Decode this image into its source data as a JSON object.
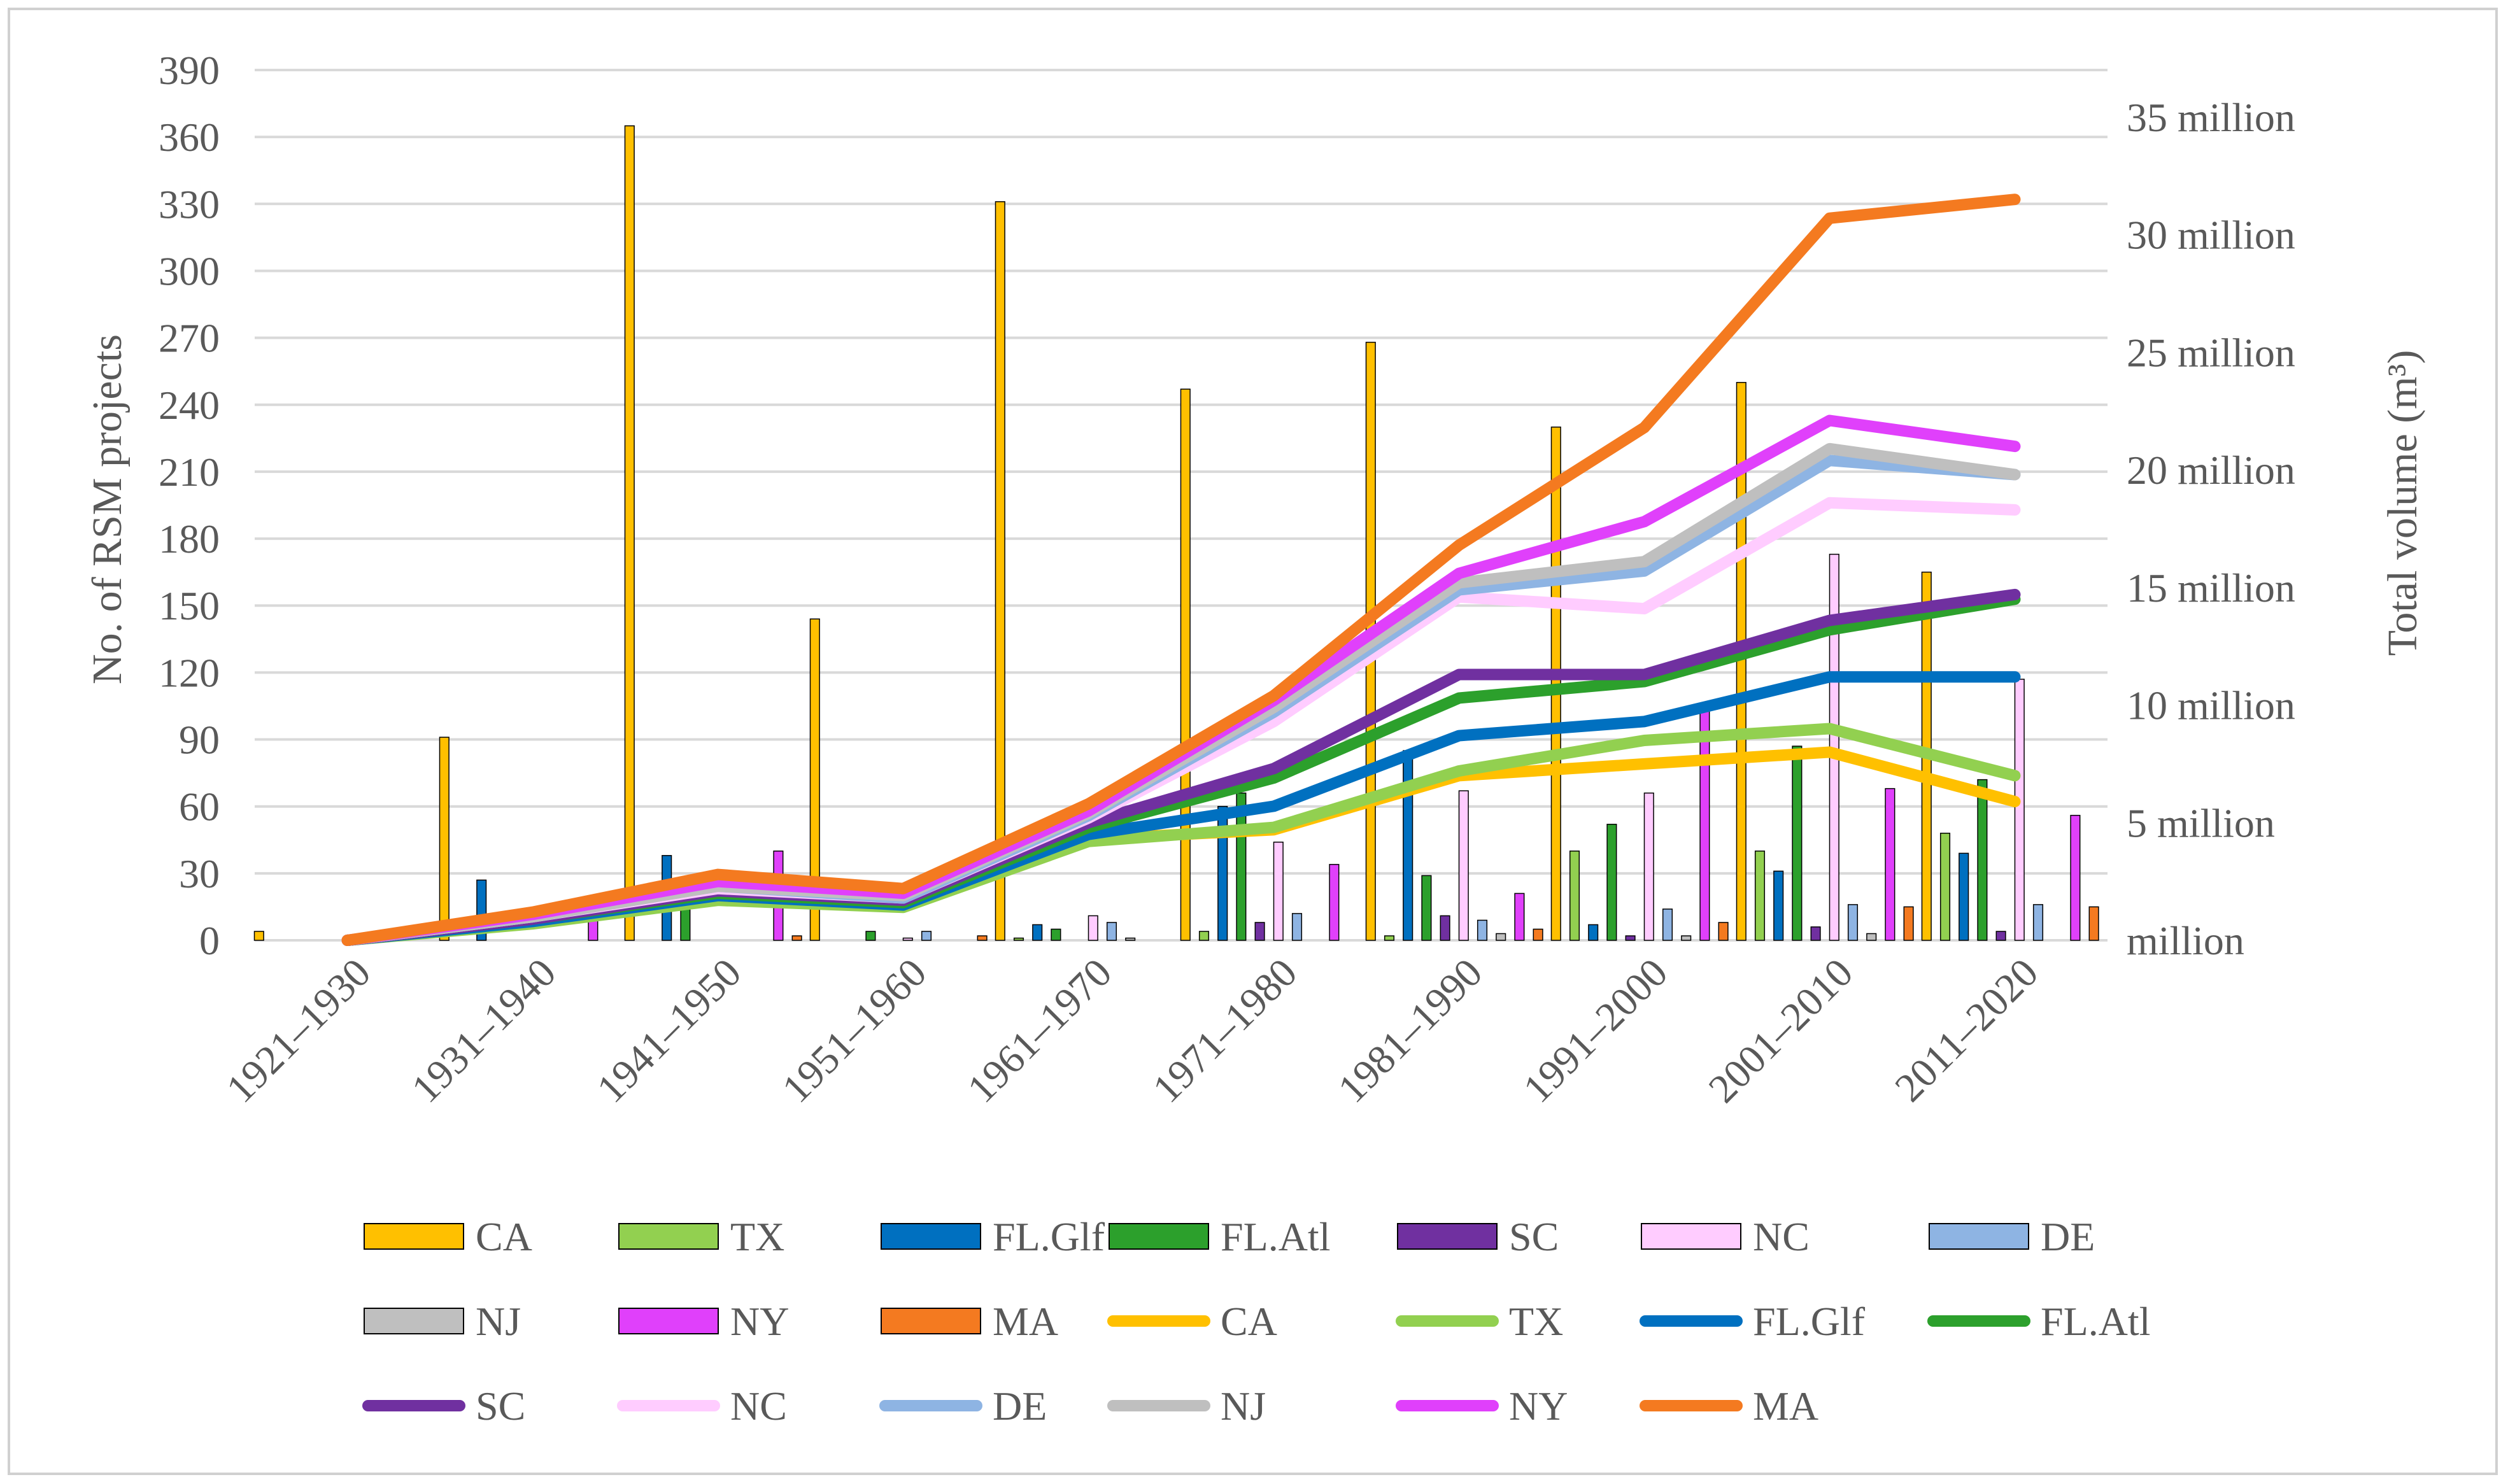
{
  "chart_data": {
    "type": "bar+line",
    "title": "",
    "categories": [
      "1921–1930",
      "1931–1940",
      "1941–1950",
      "1951–1960",
      "1961–1970",
      "1971–1980",
      "1981–1990",
      "1991–2000",
      "2001–2010",
      "2011–2020"
    ],
    "ylabel": "No. of RSM projects",
    "y2label": "Total volume (m³)",
    "ylim": [
      0,
      390
    ],
    "yticks": [
      0,
      30,
      60,
      90,
      120,
      150,
      180,
      210,
      240,
      270,
      300,
      330,
      360,
      390
    ],
    "y2lim": [
      0,
      37000000
    ],
    "y2ticks": [
      {
        "value": 0,
        "label": "million"
      },
      {
        "value": 5000000,
        "label": "5 million"
      },
      {
        "value": 10000000,
        "label": "10 million"
      },
      {
        "value": 15000000,
        "label": "15 million"
      },
      {
        "value": 20000000,
        "label": "20 million"
      },
      {
        "value": 25000000,
        "label": "25 million"
      },
      {
        "value": 30000000,
        "label": "30 million"
      },
      {
        "value": 35000000,
        "label": "35 million"
      }
    ],
    "grid": true,
    "legend_position": "bottom",
    "bar_series": [
      {
        "name": "CA",
        "color": "#FFC000",
        "values": [
          4,
          91,
          365,
          144,
          331,
          247,
          268,
          230,
          250,
          165
        ]
      },
      {
        "name": "TX",
        "color": "#92D050",
        "values": [
          0,
          0,
          0,
          0,
          1,
          4,
          2,
          40,
          40,
          48
        ]
      },
      {
        "name": "FL.Glf",
        "color": "#0070C0",
        "values": [
          0,
          27,
          38,
          0,
          7,
          60,
          85,
          7,
          31,
          39
        ]
      },
      {
        "name": "FL.Atl",
        "color": "#2CA02C",
        "values": [
          0,
          0,
          20,
          4,
          5,
          66,
          29,
          52,
          87,
          72
        ]
      },
      {
        "name": "SC",
        "color": "#7030A0",
        "values": [
          0,
          0,
          0,
          0,
          0,
          8,
          11,
          2,
          6,
          4
        ]
      },
      {
        "name": "NC",
        "color": "#FFCCFF",
        "values": [
          0,
          0,
          0,
          1,
          11,
          44,
          67,
          66,
          173,
          117
        ]
      },
      {
        "name": "DE",
        "color": "#8EB4E3",
        "values": [
          0,
          0,
          0,
          4,
          8,
          12,
          9,
          14,
          16,
          16
        ]
      },
      {
        "name": "NJ",
        "color": "#BFBFBF",
        "values": [
          0,
          0,
          0,
          0,
          1,
          0,
          3,
          2,
          3,
          0
        ]
      },
      {
        "name": "NY",
        "color": "#E040FB",
        "values": [
          0,
          10,
          40,
          0,
          0,
          34,
          21,
          105,
          68,
          56
        ]
      },
      {
        "name": "MA",
        "color": "#F47A20",
        "values": [
          0,
          0,
          2,
          2,
          0,
          0,
          5,
          8,
          15,
          15
        ]
      }
    ],
    "line_series": [
      {
        "name": "CA",
        "color": "#FFC000",
        "values": [
          0,
          800000,
          1800000,
          1500000,
          4300000,
          4700000,
          7000000,
          7500000,
          8000000,
          5900000
        ]
      },
      {
        "name": "TX",
        "color": "#92D050",
        "values": [
          0,
          700000,
          1700000,
          1400000,
          4200000,
          4800000,
          7200000,
          8500000,
          9000000,
          7000000
        ]
      },
      {
        "name": "FL.Glf",
        "color": "#0070C0",
        "values": [
          0,
          800000,
          1900000,
          1500000,
          4500000,
          5700000,
          8700000,
          9300000,
          11200000,
          11200000
        ]
      },
      {
        "name": "FL.Atl",
        "color": "#2CA02C",
        "values": [
          0,
          900000,
          2000000,
          1600000,
          4800000,
          6900000,
          10300000,
          11000000,
          13200000,
          14500000
        ]
      },
      {
        "name": "SC",
        "color": "#7030A0",
        "values": [
          0,
          900000,
          2100000,
          1700000,
          5000000,
          7300000,
          11300000,
          11300000,
          13600000,
          14700000
        ]
      },
      {
        "name": "NC",
        "color": "#FFCCFF",
        "values": [
          0,
          1000000,
          2200000,
          1800000,
          5200000,
          9300000,
          14600000,
          14100000,
          18600000,
          18300000
        ]
      },
      {
        "name": "DE",
        "color": "#8EB4E3",
        "values": [
          0,
          1000000,
          2300000,
          1800000,
          5300000,
          9700000,
          14900000,
          15700000,
          20400000,
          19800000
        ]
      },
      {
        "name": "NJ",
        "color": "#BFBFBF",
        "values": [
          0,
          1000000,
          2300000,
          1900000,
          5400000,
          9900000,
          15200000,
          16100000,
          20900000,
          19800000
        ]
      },
      {
        "name": "NY",
        "color": "#E040FB",
        "values": [
          0,
          1100000,
          2500000,
          2000000,
          5500000,
          10200000,
          15600000,
          17800000,
          22100000,
          21000000
        ]
      },
      {
        "name": "MA",
        "color": "#F47A20",
        "values": [
          0,
          1200000,
          2800000,
          2200000,
          5800000,
          10400000,
          16800000,
          21800000,
          30700000,
          31500000
        ]
      }
    ]
  }
}
